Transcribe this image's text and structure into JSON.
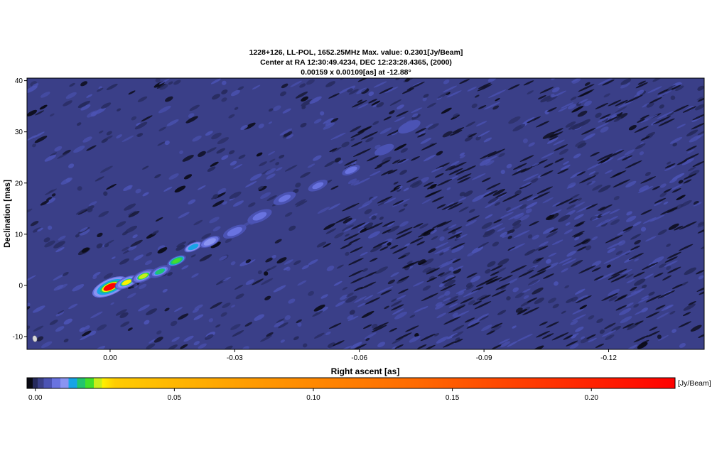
{
  "chart_data": {
    "type": "heatmap",
    "title_lines": [
      "1228+126, LL-POL, 1652.25MHz Max. value: 0.2301[Jy/Beam]",
      "Center at RA 12:30:49.4234, DEC 12:23:28.4365, (2000)",
      "0.00159 x 0.00109[as] at -12.88°"
    ],
    "xlabel": "Right ascent [as]",
    "ylabel": "Declination [mas]",
    "xlim": [
      0.02,
      -0.143
    ],
    "ylim": [
      -12.5,
      40.5
    ],
    "x_ticks": [
      {
        "value": 0.0,
        "label": "0.00"
      },
      {
        "value": -0.03,
        "label": "-0.03"
      },
      {
        "value": -0.06,
        "label": "-0.06"
      },
      {
        "value": -0.09,
        "label": "-0.09"
      },
      {
        "value": -0.12,
        "label": "-0.12"
      }
    ],
    "y_ticks": [
      {
        "value": 40,
        "label": "40"
      },
      {
        "value": 30,
        "label": "30"
      },
      {
        "value": 20,
        "label": "20"
      },
      {
        "value": 10,
        "label": "10"
      },
      {
        "value": 0,
        "label": "0"
      },
      {
        "value": -10,
        "label": "-10"
      }
    ],
    "max_value": 0.2301,
    "colorbar": {
      "unit_label": "[Jy/Beam]",
      "range": [
        -0.003,
        0.2301
      ],
      "ticks": [
        {
          "value": 0.0,
          "label": "0.00"
        },
        {
          "value": 0.05,
          "label": "0.05"
        },
        {
          "value": 0.1,
          "label": "0.10"
        },
        {
          "value": 0.15,
          "label": "0.15"
        },
        {
          "value": 0.2,
          "label": "0.20"
        }
      ],
      "levels": [
        {
          "value": -0.003,
          "color": "#0a0a14"
        },
        {
          "value": -0.001,
          "color": "#262a5c"
        },
        {
          "value": 0.0008,
          "color": "#3a3f88"
        },
        {
          "value": 0.003,
          "color": "#4b53b4"
        },
        {
          "value": 0.006,
          "color": "#6973e0"
        },
        {
          "value": 0.009,
          "color": "#8a94f2"
        },
        {
          "value": 0.012,
          "color": "#17a4e6"
        },
        {
          "value": 0.015,
          "color": "#22c46e"
        },
        {
          "value": 0.018,
          "color": "#43e02a"
        },
        {
          "value": 0.021,
          "color": "#c8ee1a"
        },
        {
          "value": 0.024,
          "color": "#fff200"
        },
        {
          "value": 0.2301,
          "color": "#ff0000"
        }
      ]
    },
    "background_value": 0.0008,
    "beam": {
      "major_mas": 1.59,
      "minor_mas": 1.09,
      "pa_deg": -12.88
    },
    "features": [
      {
        "name": "core",
        "x": 0.0,
        "y": -0.3,
        "peak": 0.2301
      },
      {
        "name": "jet-knot",
        "x": -0.004,
        "y": 0.6,
        "peak": 0.05
      },
      {
        "name": "jet-knot",
        "x": -0.008,
        "y": 1.8,
        "peak": 0.022
      },
      {
        "name": "jet-knot",
        "x": -0.012,
        "y": 2.7,
        "peak": 0.016
      },
      {
        "name": "jet-knot",
        "x": -0.016,
        "y": 4.8,
        "peak": 0.02
      },
      {
        "name": "jet-knot",
        "x": -0.02,
        "y": 7.5,
        "peak": 0.013
      },
      {
        "name": "jet-knot",
        "x": -0.024,
        "y": 8.5,
        "peak": 0.011
      },
      {
        "name": "jet-knot",
        "x": -0.03,
        "y": 10.5,
        "peak": 0.008
      },
      {
        "name": "jet-knot",
        "x": -0.036,
        "y": 13.5,
        "peak": 0.007
      },
      {
        "name": "jet-knot",
        "x": -0.042,
        "y": 17.0,
        "peak": 0.006
      },
      {
        "name": "jet-knot",
        "x": -0.05,
        "y": 19.5,
        "peak": 0.006
      },
      {
        "name": "jet-knot",
        "x": -0.058,
        "y": 22.5,
        "peak": 0.006
      },
      {
        "name": "jet-knot",
        "x": -0.066,
        "y": 26.5,
        "peak": 0.005
      },
      {
        "name": "jet-knot",
        "x": -0.072,
        "y": 31.0,
        "peak": 0.004
      }
    ]
  }
}
